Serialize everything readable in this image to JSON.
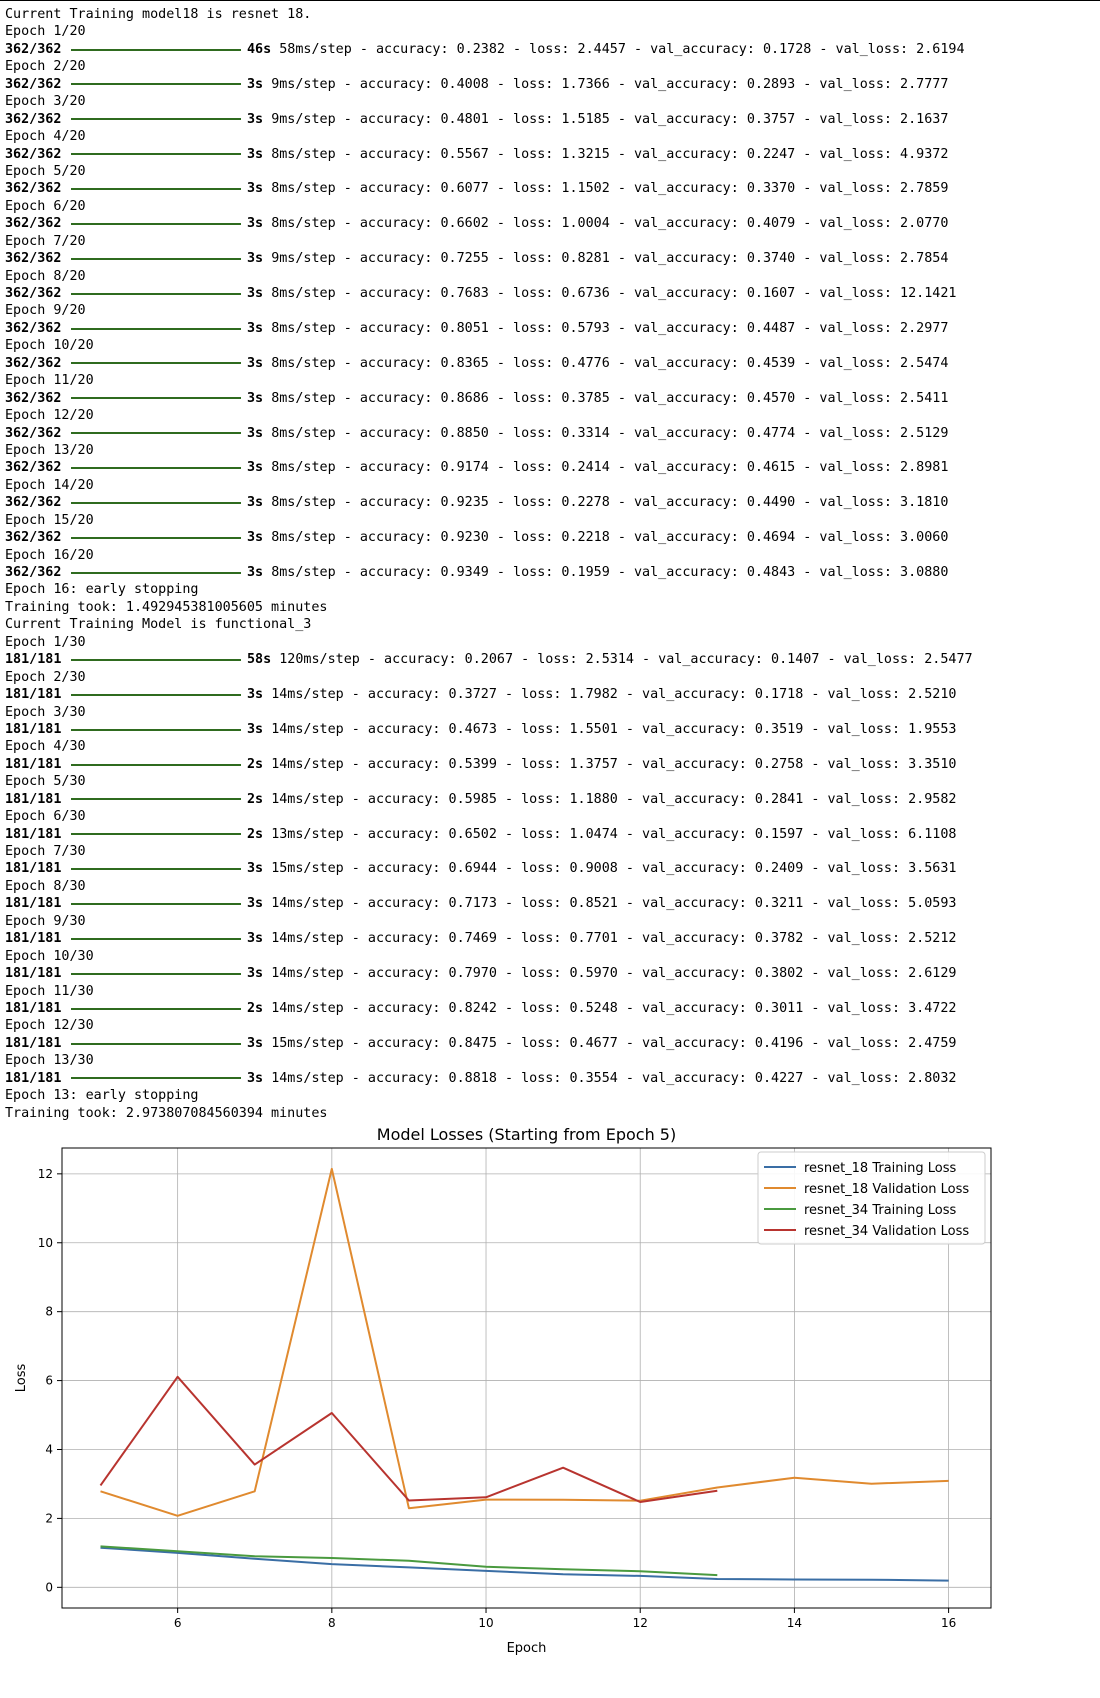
{
  "console": {
    "run1": {
      "header": "Current Training model18 is resnet 18.",
      "epochs": [
        {
          "epoch": "Epoch 1/20",
          "steps": "362/362",
          "time": "46s",
          "rest": "58ms/step - accuracy: 0.2382 - loss: 2.4457 - val_accuracy: 0.1728 - val_loss: 2.6194"
        },
        {
          "epoch": "Epoch 2/20",
          "steps": "362/362",
          "time": "3s",
          "rest": "9ms/step - accuracy: 0.4008 - loss: 1.7366 - val_accuracy: 0.2893 - val_loss: 2.7777"
        },
        {
          "epoch": "Epoch 3/20",
          "steps": "362/362",
          "time": "3s",
          "rest": "9ms/step - accuracy: 0.4801 - loss: 1.5185 - val_accuracy: 0.3757 - val_loss: 2.1637"
        },
        {
          "epoch": "Epoch 4/20",
          "steps": "362/362",
          "time": "3s",
          "rest": "8ms/step - accuracy: 0.5567 - loss: 1.3215 - val_accuracy: 0.2247 - val_loss: 4.9372"
        },
        {
          "epoch": "Epoch 5/20",
          "steps": "362/362",
          "time": "3s",
          "rest": "8ms/step - accuracy: 0.6077 - loss: 1.1502 - val_accuracy: 0.3370 - val_loss: 2.7859"
        },
        {
          "epoch": "Epoch 6/20",
          "steps": "362/362",
          "time": "3s",
          "rest": "8ms/step - accuracy: 0.6602 - loss: 1.0004 - val_accuracy: 0.4079 - val_loss: 2.0770"
        },
        {
          "epoch": "Epoch 7/20",
          "steps": "362/362",
          "time": "3s",
          "rest": "9ms/step - accuracy: 0.7255 - loss: 0.8281 - val_accuracy: 0.3740 - val_loss: 2.7854"
        },
        {
          "epoch": "Epoch 8/20",
          "steps": "362/362",
          "time": "3s",
          "rest": "8ms/step - accuracy: 0.7683 - loss: 0.6736 - val_accuracy: 0.1607 - val_loss: 12.1421"
        },
        {
          "epoch": "Epoch 9/20",
          "steps": "362/362",
          "time": "3s",
          "rest": "8ms/step - accuracy: 0.8051 - loss: 0.5793 - val_accuracy: 0.4487 - val_loss: 2.2977"
        },
        {
          "epoch": "Epoch 10/20",
          "steps": "362/362",
          "time": "3s",
          "rest": "8ms/step - accuracy: 0.8365 - loss: 0.4776 - val_accuracy: 0.4539 - val_loss: 2.5474"
        },
        {
          "epoch": "Epoch 11/20",
          "steps": "362/362",
          "time": "3s",
          "rest": "8ms/step - accuracy: 0.8686 - loss: 0.3785 - val_accuracy: 0.4570 - val_loss: 2.5411"
        },
        {
          "epoch": "Epoch 12/20",
          "steps": "362/362",
          "time": "3s",
          "rest": "8ms/step - accuracy: 0.8850 - loss: 0.3314 - val_accuracy: 0.4774 - val_loss: 2.5129"
        },
        {
          "epoch": "Epoch 13/20",
          "steps": "362/362",
          "time": "3s",
          "rest": "8ms/step - accuracy: 0.9174 - loss: 0.2414 - val_accuracy: 0.4615 - val_loss: 2.8981"
        },
        {
          "epoch": "Epoch 14/20",
          "steps": "362/362",
          "time": "3s",
          "rest": "8ms/step - accuracy: 0.9235 - loss: 0.2278 - val_accuracy: 0.4490 - val_loss: 3.1810"
        },
        {
          "epoch": "Epoch 15/20",
          "steps": "362/362",
          "time": "3s",
          "rest": "8ms/step - accuracy: 0.9230 - loss: 0.2218 - val_accuracy: 0.4694 - val_loss: 3.0060"
        },
        {
          "epoch": "Epoch 16/20",
          "steps": "362/362",
          "time": "3s",
          "rest": "8ms/step - accuracy: 0.9349 - loss: 0.1959 - val_accuracy: 0.4843 - val_loss: 3.0880"
        }
      ],
      "stop_msg": "Epoch 16: early stopping",
      "took_msg": "Training took: 1.492945381005605 minutes"
    },
    "run2": {
      "header": "Current Training Model is functional_3",
      "epochs": [
        {
          "epoch": "Epoch 1/30",
          "steps": "181/181",
          "time": "58s",
          "rest": "120ms/step - accuracy: 0.2067 - loss: 2.5314 - val_accuracy: 0.1407 - val_loss: 2.5477"
        },
        {
          "epoch": "Epoch 2/30",
          "steps": "181/181",
          "time": "3s",
          "rest": "14ms/step - accuracy: 0.3727 - loss: 1.7982 - val_accuracy: 0.1718 - val_loss: 2.5210"
        },
        {
          "epoch": "Epoch 3/30",
          "steps": "181/181",
          "time": "3s",
          "rest": "14ms/step - accuracy: 0.4673 - loss: 1.5501 - val_accuracy: 0.3519 - val_loss: 1.9553"
        },
        {
          "epoch": "Epoch 4/30",
          "steps": "181/181",
          "time": "2s",
          "rest": "14ms/step - accuracy: 0.5399 - loss: 1.3757 - val_accuracy: 0.2758 - val_loss: 3.3510"
        },
        {
          "epoch": "Epoch 5/30",
          "steps": "181/181",
          "time": "2s",
          "rest": "14ms/step - accuracy: 0.5985 - loss: 1.1880 - val_accuracy: 0.2841 - val_loss: 2.9582"
        },
        {
          "epoch": "Epoch 6/30",
          "steps": "181/181",
          "time": "2s",
          "rest": "13ms/step - accuracy: 0.6502 - loss: 1.0474 - val_accuracy: 0.1597 - val_loss: 6.1108"
        },
        {
          "epoch": "Epoch 7/30",
          "steps": "181/181",
          "time": "3s",
          "rest": "15ms/step - accuracy: 0.6944 - loss: 0.9008 - val_accuracy: 0.2409 - val_loss: 3.5631"
        },
        {
          "epoch": "Epoch 8/30",
          "steps": "181/181",
          "time": "3s",
          "rest": "14ms/step - accuracy: 0.7173 - loss: 0.8521 - val_accuracy: 0.3211 - val_loss: 5.0593"
        },
        {
          "epoch": "Epoch 9/30",
          "steps": "181/181",
          "time": "3s",
          "rest": "14ms/step - accuracy: 0.7469 - loss: 0.7701 - val_accuracy: 0.3782 - val_loss: 2.5212"
        },
        {
          "epoch": "Epoch 10/30",
          "steps": "181/181",
          "time": "3s",
          "rest": "14ms/step - accuracy: 0.7970 - loss: 0.5970 - val_accuracy: 0.3802 - val_loss: 2.6129"
        },
        {
          "epoch": "Epoch 11/30",
          "steps": "181/181",
          "time": "2s",
          "rest": "14ms/step - accuracy: 0.8242 - loss: 0.5248 - val_accuracy: 0.3011 - val_loss: 3.4722"
        },
        {
          "epoch": "Epoch 12/30",
          "steps": "181/181",
          "time": "3s",
          "rest": "15ms/step - accuracy: 0.8475 - loss: 0.4677 - val_accuracy: 0.4196 - val_loss: 2.4759"
        },
        {
          "epoch": "Epoch 13/30",
          "steps": "181/181",
          "time": "3s",
          "rest": "14ms/step - accuracy: 0.8818 - loss: 0.3554 - val_accuracy: 0.4227 - val_loss: 2.8032"
        }
      ],
      "stop_msg": "Epoch 13: early stopping",
      "took_msg": "Training took: 2.973807084560394 minutes"
    },
    "bar_color": "#2f6b1f"
  },
  "chart_data": {
    "type": "line",
    "title": "Model Losses (Starting from Epoch 5)",
    "xlabel": "Epoch",
    "ylabel": "Loss",
    "xlim": [
      4.5,
      16.55
    ],
    "ylim": [
      -0.6,
      12.75
    ],
    "xticks": [
      6,
      8,
      10,
      12,
      14,
      16
    ],
    "yticks": [
      0,
      2,
      4,
      6,
      8,
      10,
      12
    ],
    "grid": true,
    "legend_position": "top-right",
    "series": [
      {
        "name": "resnet_18 Training Loss",
        "color": "#3a6ea5",
        "x": [
          5,
          6,
          7,
          8,
          9,
          10,
          11,
          12,
          13,
          14,
          15,
          16
        ],
        "y": [
          1.1502,
          1.0004,
          0.8281,
          0.6736,
          0.5793,
          0.4776,
          0.3785,
          0.3314,
          0.2414,
          0.2278,
          0.2218,
          0.1959
        ]
      },
      {
        "name": "resnet_18 Validation Loss",
        "color": "#e08a2f",
        "x": [
          5,
          6,
          7,
          8,
          9,
          10,
          11,
          12,
          13,
          14,
          15,
          16
        ],
        "y": [
          2.7859,
          2.077,
          2.7854,
          12.1421,
          2.2977,
          2.5474,
          2.5411,
          2.5129,
          2.8981,
          3.181,
          3.006,
          3.088
        ]
      },
      {
        "name": "resnet_34 Training Loss",
        "color": "#4a9a3f",
        "x": [
          5,
          6,
          7,
          8,
          9,
          10,
          11,
          12,
          13
        ],
        "y": [
          1.188,
          1.0474,
          0.9008,
          0.8521,
          0.7701,
          0.597,
          0.5248,
          0.4677,
          0.3554
        ]
      },
      {
        "name": "resnet_34 Validation Loss",
        "color": "#b8342f",
        "x": [
          5,
          6,
          7,
          8,
          9,
          10,
          11,
          12,
          13
        ],
        "y": [
          2.9582,
          6.1108,
          3.5631,
          5.0593,
          2.5212,
          2.6129,
          3.4722,
          2.4759,
          2.8032
        ]
      }
    ]
  }
}
